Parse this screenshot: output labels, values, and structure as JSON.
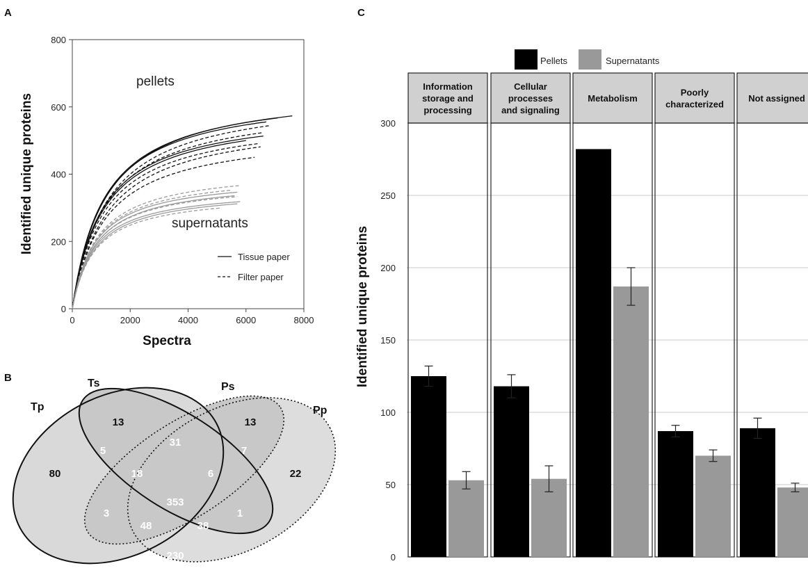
{
  "figure": {
    "panel_labels": [
      "A",
      "B",
      "C"
    ]
  },
  "chart_data": [
    {
      "panel": "A",
      "type": "line",
      "xlabel": "Spectra",
      "ylabel": "Identified unique proteins",
      "xlim": [
        0,
        8000
      ],
      "ylim": [
        0,
        800
      ],
      "xticks": [
        "0",
        "2000",
        "4000",
        "6000",
        "8000"
      ],
      "yticks": [
        "0",
        "200",
        "400",
        "600",
        "800"
      ],
      "annotations": [
        "pellets",
        "supernatants"
      ],
      "legend": {
        "position": "bottom-right",
        "entries": [
          "Tissue paper",
          "Filter paper"
        ]
      },
      "colors": {
        "pellets": "#111111",
        "supernatants": "#9a9a9a"
      },
      "series": [
        {
          "group": "pellets",
          "style": "solid",
          "asymptote": 660,
          "halfsat": 1150,
          "xmax": 7600
        },
        {
          "group": "pellets",
          "style": "solid",
          "asymptote": 655,
          "halfsat": 1100,
          "xmax": 7100
        },
        {
          "group": "pellets",
          "style": "solid",
          "asymptote": 645,
          "halfsat": 1080,
          "xmax": 6700
        },
        {
          "group": "pellets",
          "style": "solid",
          "asymptote": 595,
          "halfsat": 1050,
          "xmax": 6600
        },
        {
          "group": "pellets",
          "style": "solid",
          "asymptote": 590,
          "halfsat": 1080,
          "xmax": 6000
        },
        {
          "group": "pellets",
          "style": "dashed",
          "asymptote": 640,
          "halfsat": 1200,
          "xmax": 6800
        },
        {
          "group": "pellets",
          "style": "dashed",
          "asymptote": 615,
          "halfsat": 1150,
          "xmax": 6600
        },
        {
          "group": "pellets",
          "style": "dashed",
          "asymptote": 575,
          "halfsat": 1100,
          "xmax": 6400
        },
        {
          "group": "pellets",
          "style": "dashed",
          "asymptote": 570,
          "halfsat": 1200,
          "xmax": 6500
        },
        {
          "group": "pellets",
          "style": "dashed",
          "asymptote": 530,
          "halfsat": 1120,
          "xmax": 6300
        },
        {
          "group": "supernatants",
          "style": "solid",
          "asymptote": 395,
          "halfsat": 800,
          "xmax": 5700
        },
        {
          "group": "supernatants",
          "style": "solid",
          "asymptote": 385,
          "halfsat": 820,
          "xmax": 5600
        },
        {
          "group": "supernatants",
          "style": "solid",
          "asymptote": 360,
          "halfsat": 760,
          "xmax": 5800
        },
        {
          "group": "supernatants",
          "style": "solid",
          "asymptote": 355,
          "halfsat": 790,
          "xmax": 5700
        },
        {
          "group": "supernatants",
          "style": "dashed",
          "asymptote": 420,
          "halfsat": 850,
          "xmax": 5800
        },
        {
          "group": "supernatants",
          "style": "dashed",
          "asymptote": 405,
          "halfsat": 820,
          "xmax": 5500
        },
        {
          "group": "supernatants",
          "style": "dashed",
          "asymptote": 380,
          "halfsat": 800,
          "xmax": 5700
        },
        {
          "group": "supernatants",
          "style": "dashed",
          "asymptote": 345,
          "halfsat": 780,
          "xmax": 5100
        }
      ]
    },
    {
      "panel": "B",
      "type": "venn",
      "sets": [
        "Tp",
        "Ts",
        "Ps",
        "Pp"
      ],
      "regions": {
        "Tp_only": "80",
        "Ts_only": "13",
        "Ps_only": "13",
        "Pp_only": "22",
        "Tp_Ts": "5",
        "Ts_Ps": "31",
        "Ps_Pp": "7",
        "Tp_Ts_Ps": "18",
        "Ts_Ps_Pp": "6",
        "Tp_Ps": "3",
        "all_four": "353",
        "Ts_Pp": "1",
        "Tp_Ps_Pp": "48",
        "Tp_Ts_Pp": "38",
        "Tp_Pp": "230"
      },
      "border_styles": {
        "Tp": "solid",
        "Ts": "solid",
        "Ps": "dotted",
        "Pp": "dotted"
      }
    },
    {
      "panel": "C",
      "type": "bar",
      "ylabel": "Identified unique proteins",
      "ylim": [
        0,
        300
      ],
      "yticks": [
        "0",
        "50",
        "100",
        "150",
        "200",
        "250",
        "300"
      ],
      "grid": true,
      "legend": {
        "position": "top",
        "entries": [
          "Pellets",
          "Supernatants"
        ]
      },
      "categories": [
        {
          "lines": [
            "Information",
            "storage and",
            "processing"
          ]
        },
        {
          "lines": [
            "Cellular",
            "processes",
            "and signaling"
          ]
        },
        {
          "lines": [
            "Metabolism"
          ]
        },
        {
          "lines": [
            "Poorly",
            "characterized"
          ]
        },
        {
          "lines": [
            "Not assigned"
          ]
        }
      ],
      "series": [
        {
          "name": "Pellets",
          "color": "#000000",
          "values": [
            125,
            118,
            282,
            87,
            89
          ],
          "errors": [
            7,
            8,
            null,
            4,
            7
          ]
        },
        {
          "name": "Supernatants",
          "color": "#999999",
          "values": [
            53,
            54,
            187,
            70,
            48
          ],
          "errors": [
            6,
            9,
            13,
            4,
            3
          ]
        }
      ]
    }
  ]
}
